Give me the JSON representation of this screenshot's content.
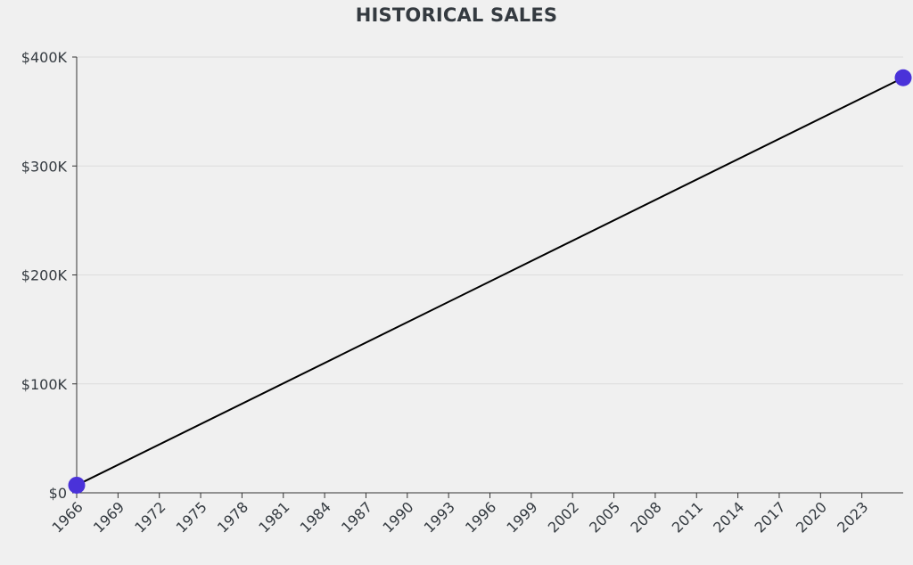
{
  "chart_data": {
    "type": "line",
    "title": "HISTORICAL SALES",
    "xlabel": "",
    "ylabel": "",
    "x_ticks": [
      "1966",
      "1969",
      "1972",
      "1975",
      "1978",
      "1981",
      "1984",
      "1987",
      "1990",
      "1993",
      "1996",
      "1999",
      "2002",
      "2005",
      "2008",
      "2011",
      "2014",
      "2017",
      "2020",
      "2023"
    ],
    "y_ticks": [
      "$0",
      "$100K",
      "$200K",
      "$300K",
      "$400K"
    ],
    "xlim": [
      1966,
      2026
    ],
    "ylim": [
      0,
      400000
    ],
    "grid": "horizontal",
    "legend": "none",
    "series": [
      {
        "points": [
          {
            "x": 1966,
            "y": 7000
          },
          {
            "x": 2026,
            "y": 381000
          }
        ]
      }
    ],
    "colors": {
      "line": "#000000",
      "marker": "#4a32d9",
      "grid": "#dcdcdc",
      "axis": "#333333",
      "text": "#343a40"
    }
  }
}
